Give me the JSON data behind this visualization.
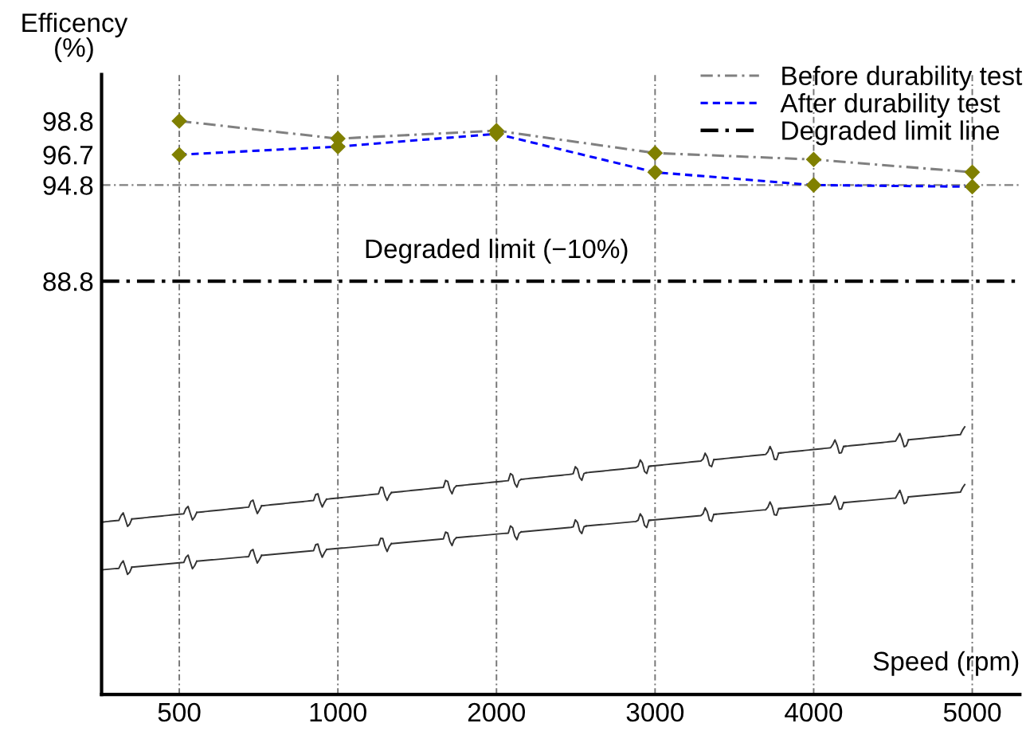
{
  "chart_data": {
    "type": "line",
    "categories": [
      "500",
      "1000",
      "2000",
      "3000",
      "4000",
      "5000"
    ],
    "ylabel": "Efficency\n(%)",
    "xlabel": "Speed (rpm)",
    "ylim": [
      63,
      101.7
    ],
    "yticks": [
      88.8,
      94.8,
      96.7,
      98.8
    ],
    "series": [
      {
        "name": "Before durability test",
        "color": "#808080",
        "line_style": "dashdot",
        "marker": "diamond",
        "values": [
          98.8,
          97.7,
          98.2,
          96.8,
          96.4,
          95.6
        ]
      },
      {
        "name": "After durability test",
        "color": "#0000ff",
        "line_style": "dashed",
        "marker": "diamond",
        "values": [
          96.7,
          97.2,
          98.0,
          95.6,
          94.8,
          94.7
        ]
      }
    ],
    "ref_lines": [
      {
        "axis": "y",
        "value": 94.8,
        "color": "#808080",
        "line_style": "dashdot"
      },
      {
        "axis": "y",
        "value": 88.8,
        "label": "Degraded limit line",
        "color": "#000000",
        "line_style": "dashdot"
      }
    ],
    "annotations": [
      {
        "text": "Degraded limit (−10%)",
        "x": "2000",
        "y": 88.8
      }
    ],
    "grid": "x",
    "legend": "top right"
  }
}
